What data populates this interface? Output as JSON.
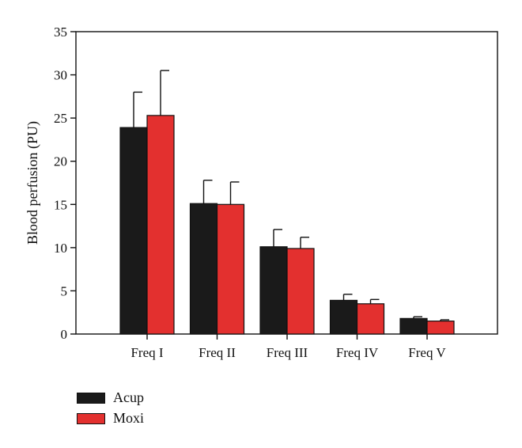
{
  "chart_data": {
    "type": "bar",
    "title": "",
    "xlabel": "",
    "ylabel": "Blood perfusion (PU)",
    "ylim": [
      0,
      35
    ],
    "yticks": [
      0,
      5,
      10,
      15,
      20,
      25,
      30,
      35
    ],
    "categories": [
      "Freq I",
      "Freq II",
      "Freq III",
      "Freq IV",
      "Freq V"
    ],
    "series": [
      {
        "name": "Acup",
        "color": "#1a1a1a",
        "values": [
          23.9,
          15.1,
          10.1,
          3.9,
          1.8
        ],
        "errors": [
          4.1,
          2.7,
          2.0,
          0.7,
          0.2
        ]
      },
      {
        "name": "Moxi",
        "color": "#e3302f",
        "values": [
          25.3,
          15.0,
          9.9,
          3.5,
          1.5
        ],
        "errors": [
          5.2,
          2.6,
          1.3,
          0.5,
          0.15
        ]
      }
    ],
    "error_bars": true,
    "grid": false,
    "legend_position": "bottom-left"
  }
}
